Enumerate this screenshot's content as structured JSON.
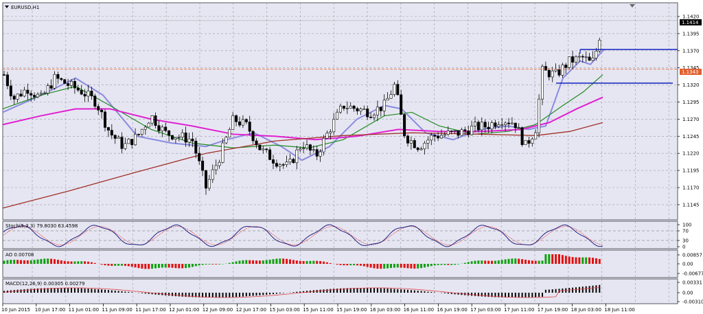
{
  "window": {
    "symbol_title": "EURUSD,H1"
  },
  "colors": {
    "plot_bg": "#e6e6f2",
    "grid": "#9a9aa6",
    "frame": "#555566",
    "candle": "#000000",
    "ma_fast": "#8a8ae0",
    "ma_green": "#1e8a1e",
    "ma_magenta": "#e020d0",
    "ma_brown": "#a03028",
    "level_blue": "#1020c0",
    "level_orange": "#e07040",
    "price_tag_bg": "#000000",
    "price_tag_fg": "#ffffff",
    "orange_tag_bg": "#e06030",
    "stoch_main": "#202080",
    "stoch_signal": "#e04040",
    "ao_up": "#10a010",
    "ao_down": "#e01010",
    "macd_hist": "#000000",
    "macd_signal": "#e04040"
  },
  "price_axis": {
    "labels": [
      "1.1420",
      "1.1395",
      "1.1370",
      "1.1345",
      "1.1320",
      "1.1295",
      "1.1270",
      "1.1245",
      "1.1220",
      "1.1195",
      "1.1170",
      "1.1145"
    ],
    "current_price": "1.1414",
    "orange_level_price": "1.1343"
  },
  "time_axis": {
    "labels": [
      "10 Jun 2015",
      "10 Jun 17:00",
      "11 Jun 01:00",
      "11 Jun 09:00",
      "11 Jun 17:00",
      "12 Jun 01:00",
      "12 Jun 09:00",
      "12 Jun 17:00",
      "15 Jun 03:00",
      "15 Jun 11:00",
      "15 Jun 19:00",
      "16 Jun 03:00",
      "16 Jun 11:00",
      "16 Jun 19:00",
      "17 Jun 03:00",
      "17 Jun 11:00",
      "17 Jun 19:00",
      "18 Jun 03:00",
      "18 Jun 11:00"
    ]
  },
  "indicators": {
    "stoch": {
      "label": "Stoch(5,3,3) 79.8030 63.4598",
      "axis_labels": [
        "100",
        "70",
        "30",
        "0"
      ]
    },
    "ao": {
      "label": "AO 0.00708",
      "axis_labels": [
        "0.00857",
        "0.00",
        "-0.00677"
      ]
    },
    "macd": {
      "label": "MACD(12,26,9) 0.00305 0.00279",
      "axis_labels": [
        "0.00331",
        "0.00",
        "-0.00310"
      ]
    }
  }
}
